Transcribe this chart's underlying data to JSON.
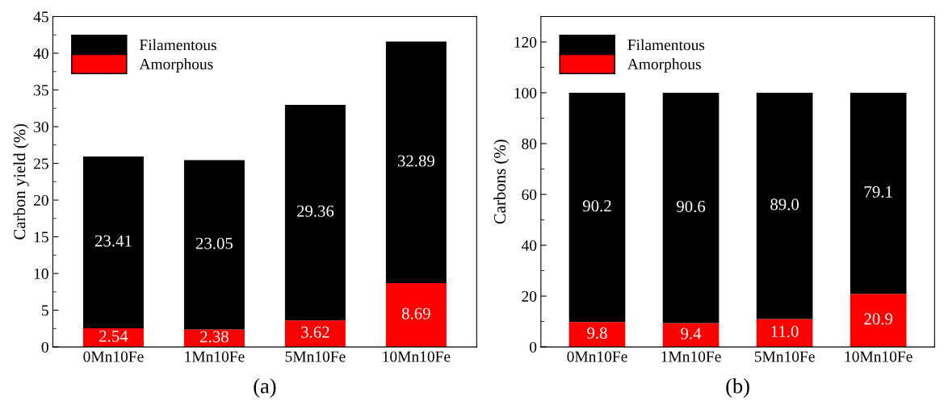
{
  "chart_data": [
    {
      "type": "bar",
      "stacked": true,
      "ylabel": "Carbon yield (%)",
      "categories": [
        "0Mn10Fe",
        "1Mn10Fe",
        "5Mn10Fe",
        "10Mn10Fe"
      ],
      "series": [
        {
          "name": "Amorphous",
          "color": "#ff0000",
          "values": [
            2.54,
            2.38,
            3.62,
            8.69
          ]
        },
        {
          "name": "Filamentous",
          "color": "#000000",
          "values": [
            23.41,
            23.05,
            29.36,
            32.89
          ]
        }
      ],
      "ylim": [
        0,
        45
      ],
      "yticks": [
        0,
        5,
        10,
        15,
        20,
        25,
        30,
        35,
        40,
        45
      ],
      "data_labels": true,
      "legend": "top left",
      "grid": false,
      "annotations": [
        "(a)"
      ]
    },
    {
      "type": "bar",
      "stacked": true,
      "ylabel": "Carbons (%)",
      "categories": [
        "0Mn10Fe",
        "1Mn10Fe",
        "5Mn10Fe",
        "10Mn10Fe"
      ],
      "series": [
        {
          "name": "Amorphous",
          "color": "#ff0000",
          "values": [
            9.8,
            9.4,
            11.0,
            20.9
          ],
          "value_labels": [
            "9.8",
            "9.4",
            "11.0",
            "20.9"
          ]
        },
        {
          "name": "Filamentous",
          "color": "#000000",
          "values": [
            90.2,
            90.6,
            89.0,
            79.1
          ],
          "value_labels": [
            "90.2",
            "90.6",
            "89.0",
            "79.1"
          ]
        }
      ],
      "ylim": [
        0,
        130
      ],
      "yticks": [
        0,
        20,
        40,
        60,
        80,
        100,
        120
      ],
      "legend": "top left",
      "grid": false,
      "annotations": [
        "(b)"
      ]
    }
  ]
}
